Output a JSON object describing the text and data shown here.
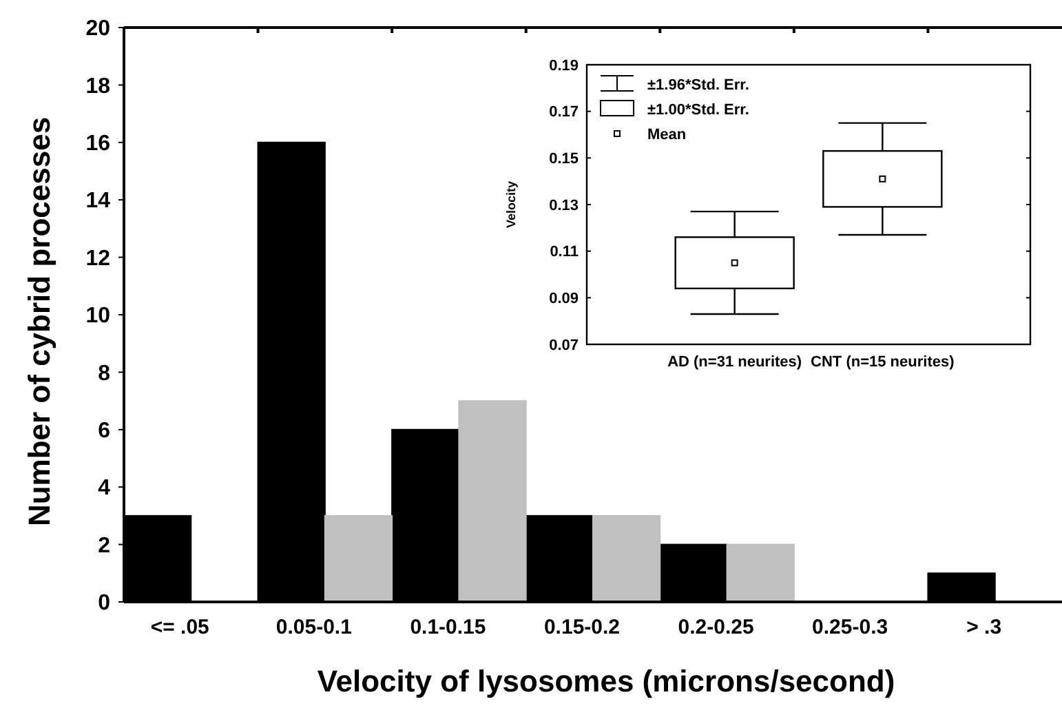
{
  "chart_data": [
    {
      "type": "bar",
      "xlabel": "Velocity of lysosomes (microns/second)",
      "ylabel": "Number of cybrid processes",
      "categories": [
        "<= .05",
        "0.05-0.1",
        "0.1-0.15",
        "0.15-0.2",
        "0.2-0.25",
        "0.25-0.3",
        "> .3"
      ],
      "series": [
        {
          "color": "#000000",
          "values": [
            3,
            16,
            6,
            3,
            2,
            0,
            1
          ]
        },
        {
          "color": "#c0c0c0",
          "values": [
            0,
            3,
            7,
            3,
            2,
            0,
            0
          ]
        }
      ],
      "ylim": [
        0,
        20
      ],
      "yticks": [
        0,
        2,
        4,
        6,
        8,
        10,
        12,
        14,
        16,
        18,
        20
      ],
      "grid": false
    },
    {
      "type": "box",
      "ylabel": "Velocity",
      "categories": [
        "AD (n=31 neurites)",
        "CNT (n=15 neurites)"
      ],
      "boxes": [
        {
          "low": 0.083,
          "q1": 0.094,
          "q3": 0.116,
          "high": 0.127,
          "mean": 0.105
        },
        {
          "low": 0.117,
          "q1": 0.129,
          "q3": 0.153,
          "high": 0.165,
          "mean": 0.141
        }
      ],
      "ylim": [
        0.07,
        0.19
      ],
      "yticks": [
        {
          "value": 0.07,
          "label": "0.07"
        },
        {
          "value": 0.09,
          "label": "0.09"
        },
        {
          "value": 0.11,
          "label": "0.11"
        },
        {
          "value": 0.13,
          "label": "0.13"
        },
        {
          "value": 0.15,
          "label": "0.15"
        },
        {
          "value": 0.17,
          "label": "0.17"
        },
        {
          "value": 0.19,
          "label": "0.19"
        }
      ],
      "annotations": [
        "±1.96*Std. Err.",
        "±1.00*Std. Err.",
        "Mean"
      ]
    }
  ]
}
